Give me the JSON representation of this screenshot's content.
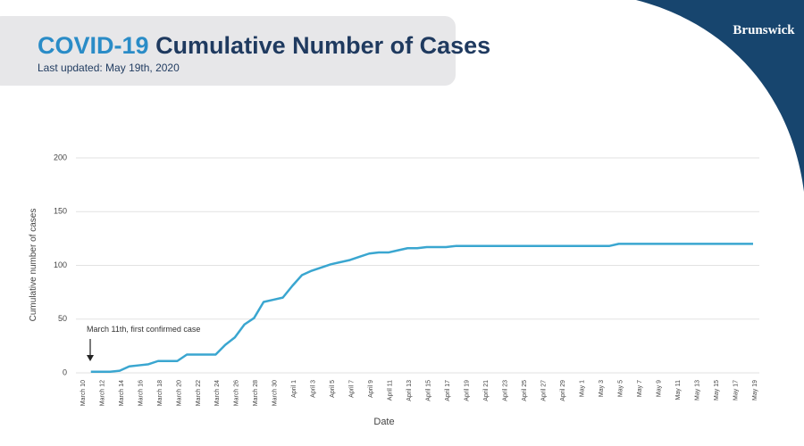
{
  "logo": "Brunswick",
  "chart_data": {
    "type": "line",
    "title_highlight": "COVID-19",
    "title": "Cumulative Number of Cases",
    "subtitle": "Last updated: May 19th, 2020",
    "xlabel": "Date",
    "ylabel": "Cumulative number of cases",
    "annotation": "March 11th, first confirmed case",
    "categories": [
      "March 10",
      null,
      "March 12",
      null,
      "March 14",
      null,
      "March 16",
      null,
      "March 18",
      null,
      "March 20",
      null,
      "March 22",
      null,
      "March 24",
      null,
      "March 26",
      null,
      "March 28",
      null,
      "March 30",
      null,
      "April 1",
      null,
      "April 3",
      null,
      "April 5",
      null,
      "April 7",
      null,
      "April 9",
      null,
      "April 11",
      null,
      "April 13",
      null,
      "April 15",
      null,
      "April 17",
      null,
      "April 19",
      null,
      "April 21",
      null,
      "April 23",
      null,
      "April 25",
      null,
      "April 27",
      null,
      "April 29",
      null,
      "May 1",
      null,
      "May 3",
      null,
      "May 5",
      null,
      "May 7",
      null,
      "May 9",
      null,
      "May 11",
      null,
      "May 13",
      null,
      "May 15",
      null,
      "May 17",
      null,
      "May 19"
    ],
    "series": [
      {
        "name": "Cumulative number of cases",
        "color": "#3aa6d0",
        "values": [
          null,
          1,
          1,
          1,
          2,
          6,
          7,
          8,
          11,
          11,
          11,
          17,
          17,
          17,
          17,
          26,
          33,
          45,
          51,
          66,
          68,
          70,
          81,
          91,
          95,
          98,
          101,
          103,
          105,
          108,
          111,
          112,
          112,
          114,
          116,
          116,
          117,
          117,
          117,
          118,
          118,
          118,
          118,
          118,
          118,
          118,
          118,
          118,
          118,
          118,
          118,
          118,
          118,
          118,
          118,
          118,
          120,
          120,
          120,
          120,
          120,
          120,
          120,
          120,
          120,
          120,
          120,
          120,
          120,
          120,
          120
        ]
      }
    ],
    "ylim": [
      0,
      200
    ],
    "yticks": [
      0,
      50,
      100,
      150,
      200
    ],
    "grid": true
  }
}
